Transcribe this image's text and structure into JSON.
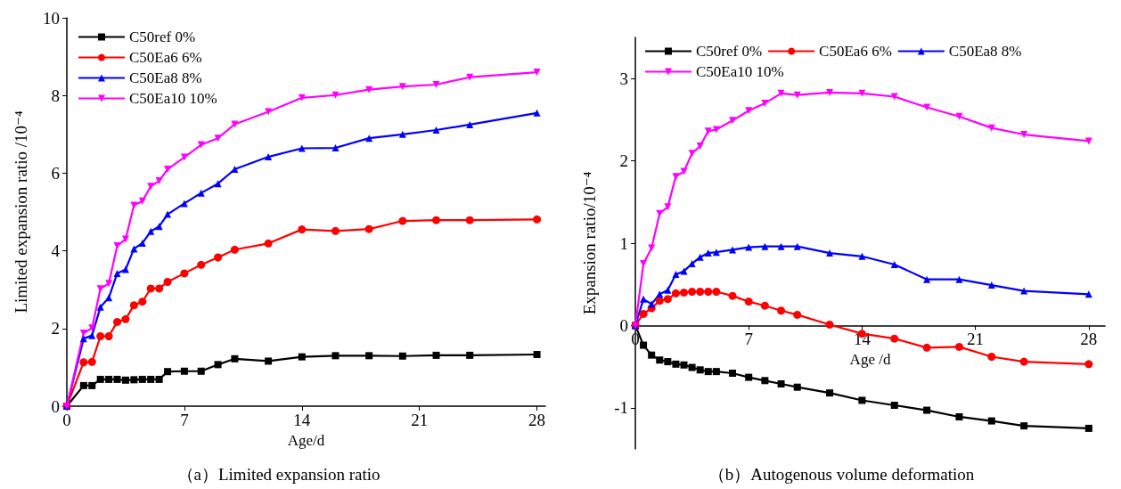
{
  "chart_data": [
    {
      "type": "line",
      "title": "（a）Limited expansion ratio",
      "xlabel": "Age/d",
      "ylabel": "Limited expansion ratio /10⁻⁴",
      "xlim": [
        0,
        28.5
      ],
      "xticks": [
        0,
        7,
        14,
        21,
        28
      ],
      "ylim": [
        0,
        10
      ],
      "yticks": [
        0,
        2,
        4,
        6,
        8,
        10
      ],
      "legend": "top left",
      "grid": false,
      "x": [
        0,
        1,
        1.5,
        2,
        2.5,
        3,
        3.5,
        4,
        4.5,
        5,
        5.5,
        6,
        7,
        8,
        9,
        10,
        12,
        14,
        16,
        18,
        20,
        22,
        24,
        28
      ],
      "series": [
        {
          "name": "C50ref 0%",
          "color": "#000000",
          "marker": "square",
          "values": [
            0,
            0.53,
            0.53,
            0.69,
            0.69,
            0.69,
            0.67,
            0.68,
            0.69,
            0.69,
            0.69,
            0.89,
            0.9,
            0.9,
            1.07,
            1.22,
            1.16,
            1.27,
            1.3,
            1.3,
            1.29,
            1.31,
            1.31,
            1.33
          ]
        },
        {
          "name": "C50Ea6 6%",
          "color": "#ff0000",
          "marker": "circle",
          "values": [
            0,
            1.13,
            1.14,
            1.8,
            1.8,
            2.17,
            2.24,
            2.6,
            2.69,
            3.03,
            3.03,
            3.2,
            3.42,
            3.64,
            3.83,
            4.03,
            4.19,
            4.55,
            4.51,
            4.56,
            4.77,
            4.79,
            4.79,
            4.81
          ]
        },
        {
          "name": "C50Ea8 8%",
          "color": "#0000ff",
          "marker": "triangle",
          "values": [
            0,
            1.74,
            1.82,
            2.55,
            2.79,
            3.42,
            3.52,
            4.05,
            4.2,
            4.5,
            4.63,
            4.94,
            5.22,
            5.49,
            5.73,
            6.1,
            6.42,
            6.64,
            6.65,
            6.9,
            7.0,
            7.11,
            7.25,
            7.55
          ]
        },
        {
          "name": "C50Ea10 10%",
          "color": "#ff00ff",
          "marker": "triangle-down",
          "values": [
            0,
            1.88,
            2.01,
            3.02,
            3.16,
            4.13,
            4.3,
            5.17,
            5.28,
            5.66,
            5.8,
            6.1,
            6.41,
            6.73,
            6.9,
            7.26,
            7.58,
            7.94,
            8.01,
            8.15,
            8.23,
            8.28,
            8.47,
            8.6
          ]
        }
      ]
    },
    {
      "type": "line",
      "title": "（b）Autogenous volume deformation",
      "xlabel": "Age /d",
      "ylabel": "Expansion ratio/10⁻⁴",
      "xlim": [
        0,
        29
      ],
      "xticks": [
        0,
        7,
        14,
        21,
        28
      ],
      "ylim": [
        -1.5,
        3.5
      ],
      "yticks": [
        -1,
        0,
        1,
        2,
        3
      ],
      "legend": "top left",
      "grid": false,
      "x": [
        0,
        0.5,
        1,
        1.5,
        2,
        2.5,
        3,
        3.5,
        4,
        4.5,
        5,
        6,
        7,
        8,
        9,
        10,
        12,
        14,
        16,
        18,
        20,
        22,
        24,
        28
      ],
      "series": [
        {
          "name": "C50ref 0%",
          "color": "#000000",
          "marker": "square",
          "values": [
            0,
            -0.24,
            -0.36,
            -0.42,
            -0.44,
            -0.47,
            -0.48,
            -0.51,
            -0.54,
            -0.56,
            -0.56,
            -0.58,
            -0.63,
            -0.67,
            -0.71,
            -0.75,
            -0.82,
            -0.91,
            -0.97,
            -1.03,
            -1.11,
            -1.16,
            -1.22,
            -1.25
          ]
        },
        {
          "name": "C50Ea6 6%",
          "color": "#ff0000",
          "marker": "circle",
          "values": [
            0,
            0.14,
            0.21,
            0.3,
            0.32,
            0.39,
            0.4,
            0.41,
            0.41,
            0.41,
            0.41,
            0.36,
            0.29,
            0.24,
            0.18,
            0.13,
            0.01,
            -0.1,
            -0.16,
            -0.27,
            -0.26,
            -0.38,
            -0.44,
            -0.47
          ]
        },
        {
          "name": "C50Ea8 8%",
          "color": "#0000ff",
          "marker": "triangle",
          "values": [
            0,
            0.32,
            0.26,
            0.38,
            0.43,
            0.62,
            0.66,
            0.75,
            0.83,
            0.88,
            0.89,
            0.92,
            0.95,
            0.96,
            0.96,
            0.96,
            0.88,
            0.84,
            0.74,
            0.56,
            0.56,
            0.49,
            0.42,
            0.38
          ]
        },
        {
          "name": "C50Ea10 10%",
          "color": "#ff00ff",
          "marker": "triangle-down",
          "values": [
            0,
            0.75,
            0.94,
            1.36,
            1.44,
            1.81,
            1.87,
            2.09,
            2.18,
            2.36,
            2.38,
            2.49,
            2.61,
            2.7,
            2.82,
            2.8,
            2.83,
            2.82,
            2.78,
            2.65,
            2.54,
            2.4,
            2.32,
            2.24
          ]
        }
      ]
    }
  ]
}
